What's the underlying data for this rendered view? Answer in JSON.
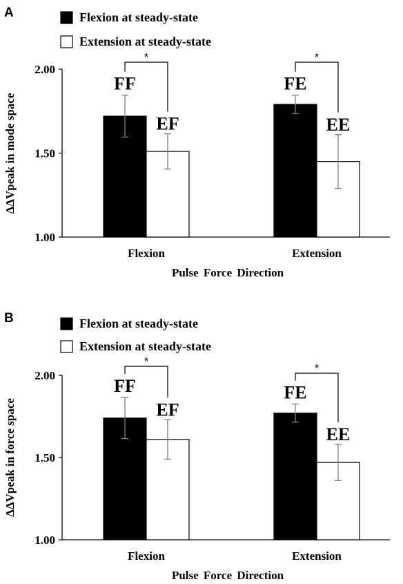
{
  "colors": {
    "flexion_fill": "#000000",
    "extension_fill": "#ffffff",
    "axis": "#000000",
    "error_bar": "#7f7f7f"
  },
  "chart_data": [
    {
      "panel": "A",
      "type": "bar",
      "legend": [
        "Flexion at steady-state",
        "Extension at steady-state"
      ],
      "legend_placement": "top-left",
      "categories": [
        "Flexion",
        "Extension"
      ],
      "xlabel": "Pulse Force Direction",
      "ylabel": "ΔΔVpeak in mode space",
      "ylim": [
        1.0,
        2.0
      ],
      "yticks": [
        "1.00",
        "1.50",
        "2.00"
      ],
      "grid": false,
      "series": [
        {
          "name": "Flexion at steady-state",
          "values": [
            1.72,
            1.79
          ],
          "errors": [
            0.125,
            0.055
          ]
        },
        {
          "name": "Extension at steady-state",
          "values": [
            1.51,
            1.45
          ],
          "errors": [
            0.105,
            0.16
          ]
        }
      ],
      "bar_labels": [
        [
          "FF",
          "FE"
        ],
        [
          "EF",
          "EE"
        ]
      ],
      "significance": [
        "*",
        "*"
      ]
    },
    {
      "panel": "B",
      "type": "bar",
      "legend": [
        "Flexion at steady-state",
        "Extension at steady-state"
      ],
      "legend_placement": "top-left",
      "categories": [
        "Flexion",
        "Extension"
      ],
      "xlabel": "Pulse Force Direction",
      "ylabel": "ΔΔVpeak in force space",
      "ylim": [
        1.0,
        2.0
      ],
      "yticks": [
        "1.00",
        "1.50",
        "2.00"
      ],
      "grid": false,
      "series": [
        {
          "name": "Flexion at steady-state",
          "values": [
            1.74,
            1.77
          ],
          "errors": [
            0.125,
            0.055
          ]
        },
        {
          "name": "Extension at steady-state",
          "values": [
            1.61,
            1.47
          ],
          "errors": [
            0.12,
            0.11
          ]
        }
      ],
      "bar_labels": [
        [
          "FF",
          "FE"
        ],
        [
          "EF",
          "EE"
        ]
      ],
      "significance": [
        "*",
        "*"
      ]
    }
  ]
}
